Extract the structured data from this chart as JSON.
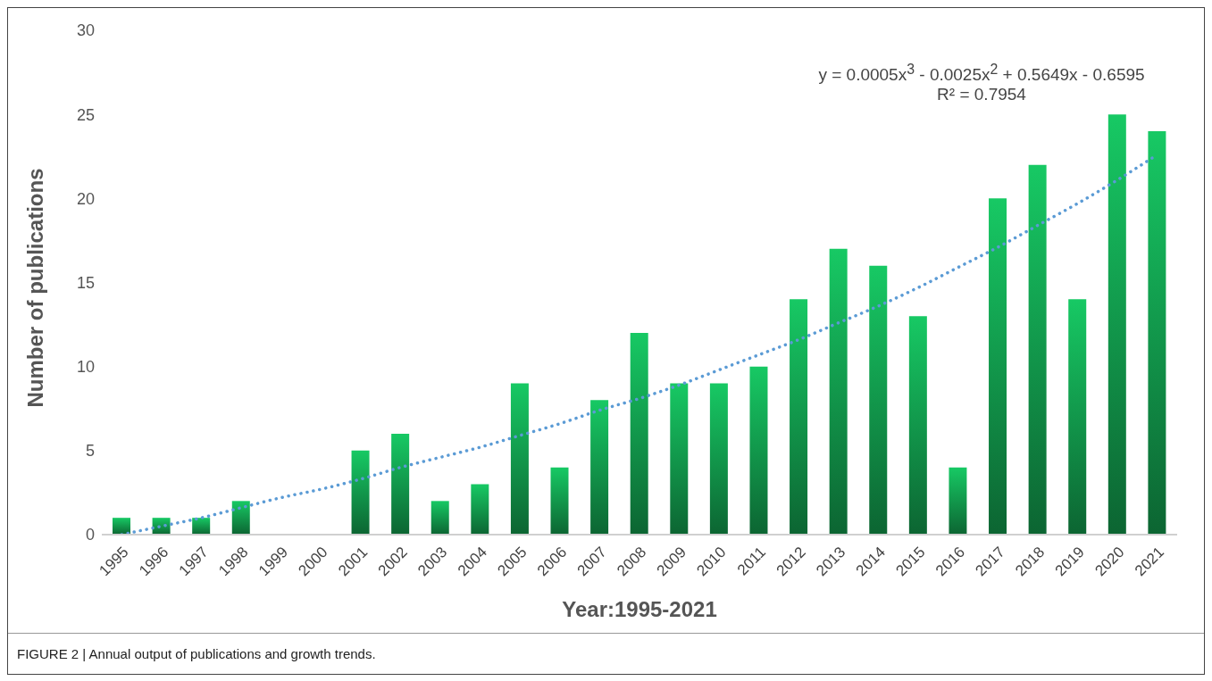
{
  "chart_data": {
    "type": "bar",
    "xlabel": "Year:1995-2021",
    "ylabel": "Number of publications",
    "categories": [
      "1995",
      "1996",
      "1997",
      "1998",
      "1999",
      "2000",
      "2001",
      "2002",
      "2003",
      "2004",
      "2005",
      "2006",
      "2007",
      "2008",
      "2009",
      "2010",
      "2011",
      "2012",
      "2013",
      "2014",
      "2015",
      "2016",
      "2017",
      "2018",
      "2019",
      "2020",
      "2021"
    ],
    "series": [
      {
        "color": "#17c964",
        "values": [
          1,
          1,
          1,
          2,
          0,
          0,
          5,
          6,
          2,
          3,
          9,
          4,
          8,
          12,
          9,
          9,
          10,
          14,
          17,
          16,
          13,
          4,
          20,
          22,
          14,
          25,
          24
        ]
      },
      {
        "type": "line",
        "color": "#5b9bd5",
        "line_style": "dotted",
        "marker": "none",
        "values": [
          0,
          0.5,
          1.0,
          1.6,
          2.2,
          2.7,
          3.3,
          4.0,
          4.6,
          5.2,
          5.9,
          6.6,
          7.4,
          8.1,
          8.9,
          9.8,
          10.7,
          11.6,
          12.6,
          13.6,
          14.7,
          15.9,
          17.1,
          18.4,
          19.7,
          21.1,
          22.6
        ]
      }
    ],
    "ylim": [
      0,
      30
    ],
    "yticks": [
      0,
      5,
      10,
      15,
      20,
      25,
      30
    ],
    "grid": false,
    "legend": false,
    "annotations": [
      "y = 0.0005x$^{3}$ - 0.0025x$^{2}$ + 0.5649x - 0.6595",
      "R² = 0.7954",
      "FIGURE 2 | Annual output of publications and growth trends."
    ]
  }
}
